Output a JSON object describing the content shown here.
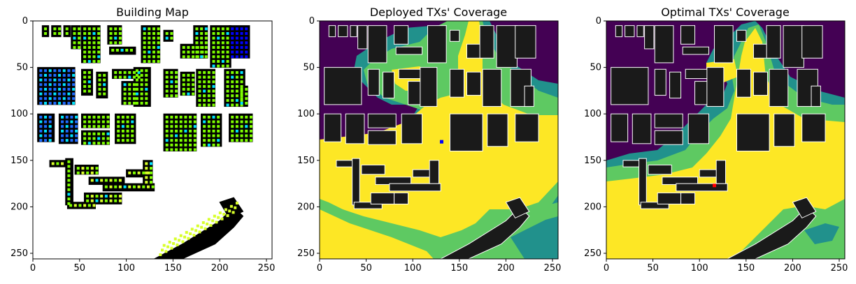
{
  "chart_data": [
    {
      "type": "heatmap",
      "title": "Building Map",
      "xlim": [
        0,
        256
      ],
      "ylim": [
        256,
        0
      ],
      "xticks": [
        "0",
        "50",
        "100",
        "150",
        "200",
        "250"
      ],
      "yticks": [
        "0",
        "50",
        "100",
        "150",
        "200",
        "250"
      ],
      "colors": {
        "background": "#ffffff",
        "building": "#000000",
        "grid_points": [
          "#7fff00",
          "#00e5ff",
          "#1e6bff",
          "#0000ff",
          "#d8ff2a"
        ]
      }
    },
    {
      "type": "heatmap",
      "title": "Deployed TXs' Coverage",
      "xlim": [
        0,
        256
      ],
      "ylim": [
        256,
        0
      ],
      "xticks": [
        "0",
        "50",
        "100",
        "150",
        "200",
        "250"
      ],
      "yticks": [
        "0",
        "50",
        "100",
        "150",
        "200",
        "250"
      ],
      "colors": {
        "buildings": "#1a1a1a",
        "outline": "#ffffff",
        "levels": [
          "#440154",
          "#21918c",
          "#5ec962",
          "#fde725"
        ],
        "marker": "#0000ff"
      },
      "marker": {
        "x": 131,
        "y": 130
      }
    },
    {
      "type": "heatmap",
      "title": "Optimal TXs' Coverage",
      "xlim": [
        0,
        256
      ],
      "ylim": [
        256,
        0
      ],
      "xticks": [
        "0",
        "50",
        "100",
        "150",
        "200",
        "250"
      ],
      "yticks": [
        "0",
        "50",
        "100",
        "150",
        "200",
        "250"
      ],
      "colors": {
        "buildings": "#1a1a1a",
        "outline": "#ffffff",
        "levels": [
          "#440154",
          "#21918c",
          "#5ec962",
          "#fde725"
        ],
        "marker": "#ff0000"
      },
      "marker": {
        "x": 116,
        "y": 177
      }
    }
  ]
}
